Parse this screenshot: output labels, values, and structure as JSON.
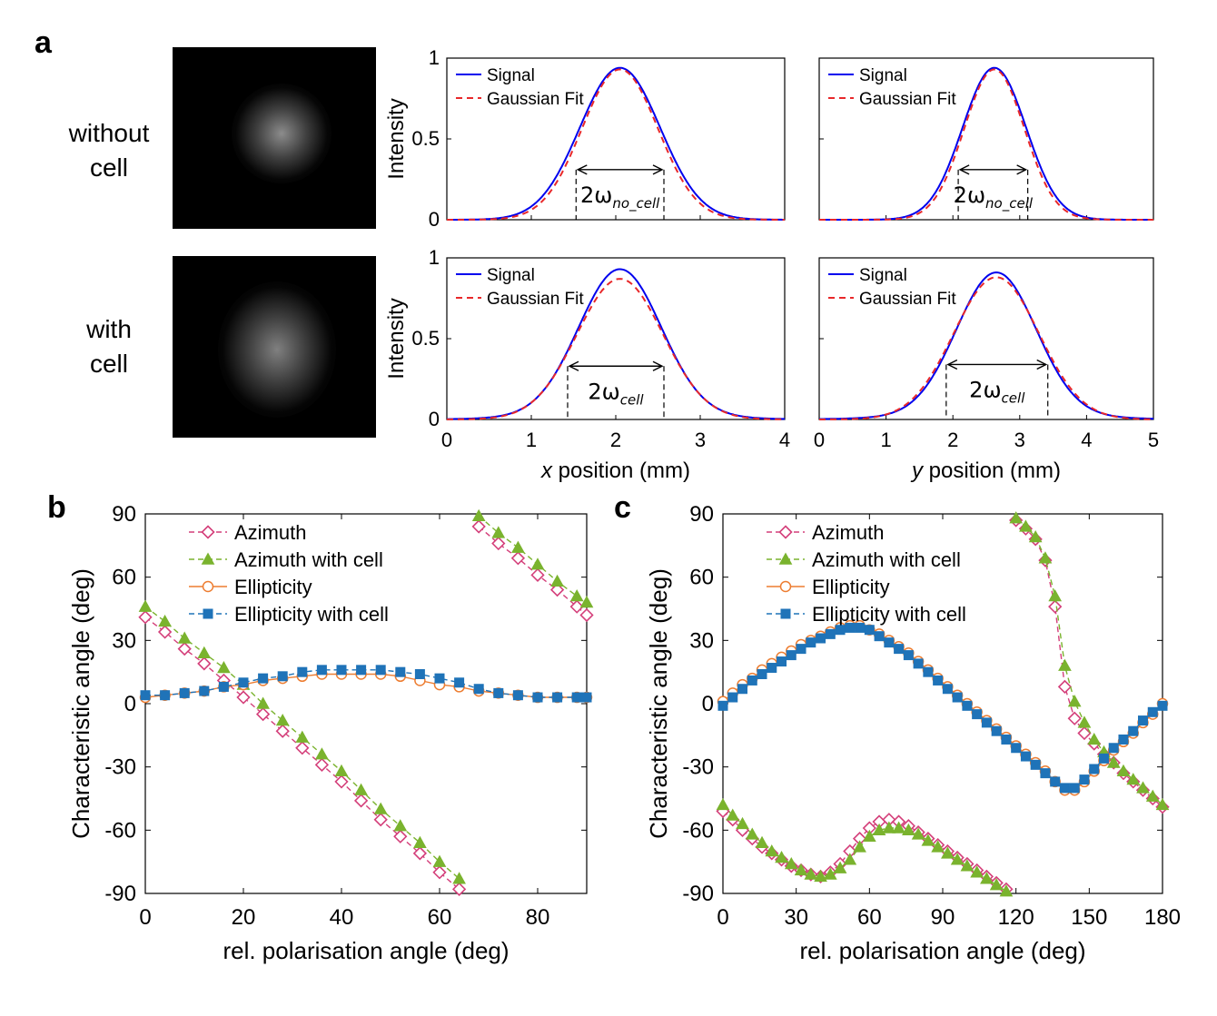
{
  "panel_letters": {
    "a": "a",
    "b": "b",
    "c": "c"
  },
  "row_labels": {
    "without_cell_line1": "without",
    "without_cell_line2": "cell",
    "with_cell_line1": "with",
    "with_cell_line2": "cell"
  },
  "beam_axes": {
    "x": "x",
    "y": "y"
  },
  "profile_legend": {
    "signal": "Signal",
    "fit": "Gaussian Fit"
  },
  "colors": {
    "signal": "#0000ee",
    "fit": "#e8282a",
    "azimuth": "#d43f7a",
    "azimuth_cell": "#7ab32e",
    "ellipticity": "#ed7d31",
    "ellipticity_cell": "#1f73b8"
  },
  "chart_data": [
    {
      "id": "a_top_left",
      "type": "line",
      "ylabel": "Intensity",
      "xlim": [
        0,
        4
      ],
      "ylim": [
        0,
        1
      ],
      "yticks": [
        0,
        0.5,
        1
      ],
      "ytick_labels": [
        "0",
        "0.5",
        "1"
      ],
      "series": [
        {
          "name": "Signal",
          "profile": {
            "center": 2.05,
            "peak": 0.94,
            "fwhm": 1.12
          }
        },
        {
          "name": "Gaussian Fit",
          "profile": {
            "center": 2.05,
            "peak": 0.93,
            "fwhm": 1.06
          }
        }
      ],
      "annotation": {
        "text_base": "2ω",
        "text_sub": "no_cell",
        "x1": 1.53,
        "x2": 2.57,
        "y": 0.31
      }
    },
    {
      "id": "a_top_right",
      "type": "line",
      "xlim": [
        0,
        5
      ],
      "ylim": [
        0,
        1
      ],
      "series": [
        {
          "name": "Signal",
          "profile": {
            "center": 2.62,
            "peak": 0.94,
            "fwhm": 1.12
          }
        },
        {
          "name": "Gaussian Fit",
          "profile": {
            "center": 2.62,
            "peak": 0.93,
            "fwhm": 1.06
          }
        }
      ],
      "annotation": {
        "text_base": "2ω",
        "text_sub": "no_cell",
        "x1": 2.08,
        "x2": 3.12,
        "y": 0.31
      }
    },
    {
      "id": "a_bottom_left",
      "type": "line",
      "ylabel": "Intensity",
      "xlabel_italic": "x",
      "xlabel_rest": " position (mm)",
      "xlim": [
        0,
        4
      ],
      "ylim": [
        0,
        1
      ],
      "xticks": [
        0,
        1,
        2,
        3,
        4
      ],
      "xtick_labels": [
        "0",
        "1",
        "2",
        "3",
        "4"
      ],
      "yticks": [
        0,
        0.5,
        1
      ],
      "ytick_labels": [
        "0",
        "0.5",
        "1"
      ],
      "series": [
        {
          "name": "Signal",
          "profile": {
            "center": 2.05,
            "peak": 0.9,
            "fwhm": 1.15,
            "wing_amp": 0.05,
            "wing_width": 0.9
          }
        },
        {
          "name": "Gaussian Fit",
          "profile": {
            "center": 2.05,
            "peak": 0.87,
            "fwhm": 1.2
          }
        }
      ],
      "annotation": {
        "text_base": "2ω",
        "text_sub": "cell",
        "x1": 1.43,
        "x2": 2.57,
        "y": 0.33
      }
    },
    {
      "id": "a_bottom_right",
      "type": "line",
      "xlabel_italic": "y",
      "xlabel_rest": " position (mm)",
      "xlim": [
        0,
        5
      ],
      "ylim": [
        0,
        1
      ],
      "xticks": [
        0,
        1,
        2,
        3,
        4,
        5
      ],
      "xtick_labels": [
        "0",
        "1",
        "2",
        "3",
        "4",
        "5"
      ],
      "series": [
        {
          "name": "Signal",
          "profile": {
            "center": 2.65,
            "peak": 0.88,
            "fwhm": 1.4,
            "wing_amp": 0.05,
            "wing_width": 1.2
          }
        },
        {
          "name": "Gaussian Fit",
          "profile": {
            "center": 2.65,
            "peak": 0.88,
            "fwhm": 1.5
          }
        }
      ],
      "annotation": {
        "text_base": "2ω",
        "text_sub": "cell",
        "x1": 1.9,
        "x2": 3.42,
        "y": 0.34
      }
    },
    {
      "id": "b",
      "type": "line",
      "xlabel": "rel. polarisation angle (deg)",
      "ylabel": "Characteristic angle (deg)",
      "xlim": [
        0,
        90
      ],
      "ylim": [
        -90,
        90
      ],
      "xticks": [
        0,
        20,
        40,
        60,
        80
      ],
      "xtick_labels": [
        "0",
        "20",
        "40",
        "60",
        "80"
      ],
      "yticks": [
        -90,
        -60,
        -30,
        0,
        30,
        60,
        90
      ],
      "ytick_labels": [
        "-90",
        "-60",
        "-30",
        "0",
        "30",
        "60",
        "90"
      ],
      "series": [
        {
          "name": "Azimuth",
          "marker": "diamond-open",
          "x": [
            0,
            4,
            8,
            12,
            16,
            20,
            24,
            28,
            32,
            36,
            40,
            44,
            48,
            52,
            56,
            60,
            64,
            68,
            72,
            76,
            80,
            84,
            88,
            90
          ],
          "y": [
            41,
            34,
            26,
            19,
            11,
            3,
            -5,
            -13,
            -21,
            -29,
            -37,
            -46,
            -55,
            -63,
            -71,
            -80,
            -88,
            84,
            76,
            69,
            61,
            54,
            46,
            42
          ]
        },
        {
          "name": "Azimuth with cell",
          "marker": "triangle-filled",
          "x": [
            0,
            4,
            8,
            12,
            16,
            20,
            24,
            28,
            32,
            36,
            40,
            44,
            48,
            52,
            56,
            60,
            64,
            68,
            72,
            76,
            80,
            84,
            88,
            90
          ],
          "y": [
            46,
            39,
            31,
            24,
            17,
            9,
            0,
            -8,
            -16,
            -24,
            -32,
            -41,
            -50,
            -58,
            -66,
            -75,
            -83,
            89,
            81,
            74,
            66,
            58,
            51,
            48
          ]
        },
        {
          "name": "Ellipticity",
          "marker": "circle-open",
          "x": [
            0,
            4,
            8,
            12,
            16,
            20,
            24,
            28,
            32,
            36,
            40,
            44,
            48,
            52,
            56,
            60,
            64,
            68,
            72,
            76,
            80,
            84,
            88,
            90
          ],
          "y": [
            3,
            4,
            5,
            6,
            8,
            9,
            11,
            12,
            13,
            14,
            14,
            14,
            14,
            13,
            11,
            9,
            8,
            6,
            5,
            4,
            3,
            3,
            3,
            3
          ]
        },
        {
          "name": "Ellipticity with cell",
          "marker": "square-filled",
          "x": [
            0,
            4,
            8,
            12,
            16,
            20,
            24,
            28,
            32,
            36,
            40,
            44,
            48,
            52,
            56,
            60,
            64,
            68,
            72,
            76,
            80,
            84,
            88,
            90
          ],
          "y": [
            4,
            4,
            5,
            6,
            8,
            10,
            12,
            13,
            15,
            16,
            16,
            16,
            16,
            15,
            14,
            12,
            10,
            7,
            5,
            4,
            3,
            3,
            3,
            3
          ]
        }
      ],
      "legend_position": "top-left"
    },
    {
      "id": "c",
      "type": "line",
      "xlabel": "rel. polarisation angle (deg)",
      "ylabel": "Characteristic angle (deg)",
      "xlim": [
        0,
        180
      ],
      "ylim": [
        -90,
        90
      ],
      "xticks": [
        0,
        30,
        60,
        90,
        120,
        150,
        180
      ],
      "xtick_labels": [
        "0",
        "30",
        "60",
        "90",
        "120",
        "150",
        "180"
      ],
      "yticks": [
        -90,
        -60,
        -30,
        0,
        30,
        60,
        90
      ],
      "ytick_labels": [
        "-90",
        "-60",
        "-30",
        "0",
        "30",
        "60",
        "90"
      ],
      "series": [
        {
          "name": "Azimuth",
          "marker": "diamond-open",
          "x": [
            0,
            4,
            8,
            12,
            16,
            20,
            24,
            28,
            32,
            36,
            40,
            44,
            48,
            52,
            56,
            60,
            64,
            68,
            72,
            76,
            80,
            84,
            88,
            92,
            96,
            100,
            104,
            108,
            112,
            116,
            120,
            124,
            128,
            132,
            136,
            140,
            144,
            148,
            152,
            156,
            160,
            164,
            168,
            172,
            176,
            180
          ],
          "y": [
            -51,
            -55,
            -60,
            -64,
            -68,
            -71,
            -74,
            -77,
            -79,
            -81,
            -82,
            -80,
            -76,
            -70,
            -64,
            -59,
            -56,
            -55,
            -56,
            -58,
            -61,
            -64,
            -67,
            -70,
            -73,
            -76,
            -79,
            -82,
            -85,
            -88,
            87,
            83,
            78,
            68,
            46,
            8,
            -7,
            -14,
            -19,
            -24,
            -28,
            -33,
            -37,
            -41,
            -45,
            -49
          ]
        },
        {
          "name": "Azimuth with cell",
          "marker": "triangle-filled",
          "x": [
            0,
            4,
            8,
            12,
            16,
            20,
            24,
            28,
            32,
            36,
            40,
            44,
            48,
            52,
            56,
            60,
            64,
            68,
            72,
            76,
            80,
            84,
            88,
            92,
            96,
            100,
            104,
            108,
            112,
            116,
            120,
            124,
            128,
            132,
            136,
            140,
            144,
            148,
            152,
            156,
            160,
            164,
            168,
            172,
            176,
            180
          ],
          "y": [
            -48,
            -53,
            -57,
            -62,
            -66,
            -70,
            -73,
            -76,
            -79,
            -81,
            -82,
            -81,
            -78,
            -74,
            -68,
            -63,
            -60,
            -59,
            -59,
            -60,
            -62,
            -65,
            -68,
            -71,
            -74,
            -77,
            -80,
            -83,
            -86,
            -89,
            88,
            84,
            79,
            69,
            51,
            18,
            1,
            -9,
            -17,
            -23,
            -28,
            -32,
            -36,
            -40,
            -44,
            -48
          ]
        },
        {
          "name": "Ellipticity",
          "marker": "circle-open",
          "x": [
            0,
            4,
            8,
            12,
            16,
            20,
            24,
            28,
            32,
            36,
            40,
            44,
            48,
            52,
            56,
            60,
            64,
            68,
            72,
            76,
            80,
            84,
            88,
            92,
            96,
            100,
            104,
            108,
            112,
            116,
            120,
            124,
            128,
            132,
            136,
            140,
            144,
            148,
            152,
            156,
            160,
            164,
            168,
            172,
            176,
            180
          ],
          "y": [
            1,
            5,
            9,
            12,
            16,
            19,
            22,
            25,
            28,
            30,
            32,
            34,
            36,
            37,
            37,
            35,
            33,
            30,
            27,
            24,
            20,
            16,
            12,
            8,
            4,
            0,
            -4,
            -8,
            -12,
            -16,
            -20,
            -24,
            -28,
            -32,
            -37,
            -41,
            -41,
            -37,
            -32,
            -27,
            -22,
            -18,
            -14,
            -9,
            -5,
            0
          ]
        },
        {
          "name": "Ellipticity with cell",
          "marker": "square-filled",
          "x": [
            0,
            4,
            8,
            12,
            16,
            20,
            24,
            28,
            32,
            36,
            40,
            44,
            48,
            52,
            56,
            60,
            64,
            68,
            72,
            76,
            80,
            84,
            88,
            92,
            96,
            100,
            104,
            108,
            112,
            116,
            120,
            124,
            128,
            132,
            136,
            140,
            144,
            148,
            152,
            156,
            160,
            164,
            168,
            172,
            176,
            180
          ],
          "y": [
            -1,
            3,
            7,
            11,
            14,
            17,
            20,
            23,
            26,
            29,
            31,
            33,
            35,
            36,
            36,
            35,
            32,
            29,
            26,
            23,
            19,
            15,
            11,
            7,
            3,
            -1,
            -5,
            -9,
            -13,
            -17,
            -21,
            -25,
            -29,
            -33,
            -37,
            -40,
            -40,
            -36,
            -31,
            -26,
            -21,
            -17,
            -13,
            -8,
            -4,
            -1
          ]
        }
      ],
      "legend_position": "top-left"
    }
  ]
}
